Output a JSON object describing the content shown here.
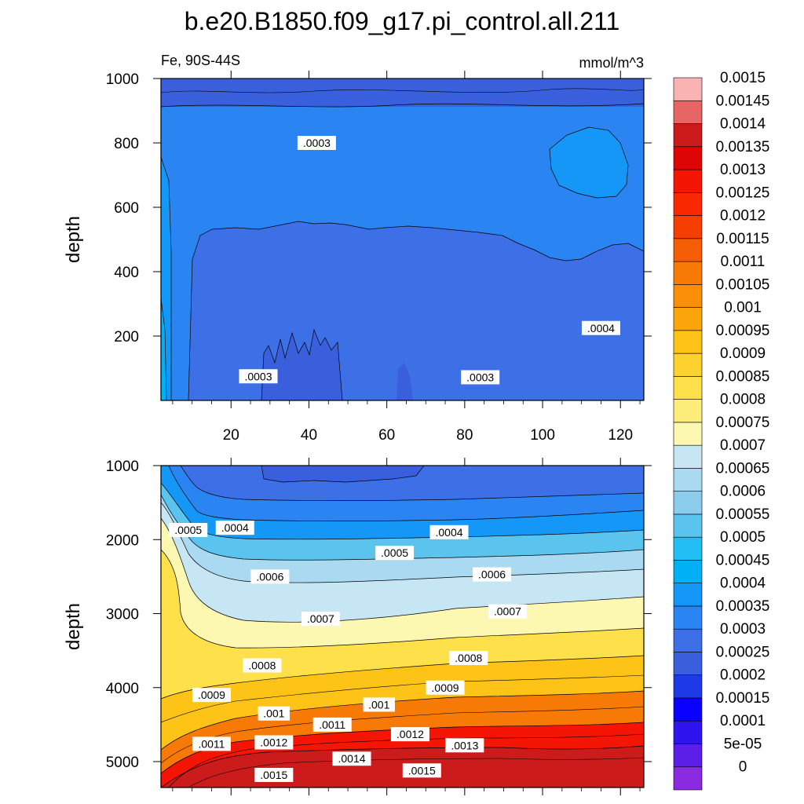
{
  "figure": {
    "title": "b.e20.B1850.f09_g17.pi_control.all.211",
    "left_label": "Fe, 90S-44S",
    "right_label": "mmol/m^3"
  },
  "chart_data": [
    {
      "type": "contour",
      "panel": "upper",
      "ylabel": "depth",
      "xlim": [
        2,
        126
      ],
      "ylim": [
        1000,
        0
      ],
      "xticks": [
        20,
        40,
        60,
        80,
        100,
        120
      ],
      "yticks": [
        200,
        400,
        600,
        800,
        1000
      ],
      "contour_labels": [
        {
          "text": ".0003",
          "x": 27,
          "y": 75
        },
        {
          "text": ".0003",
          "x": 84,
          "y": 72
        },
        {
          "text": ".0004",
          "x": 115,
          "y": 225
        },
        {
          "text": ".0003",
          "x": 42,
          "y": 800
        }
      ]
    },
    {
      "type": "contour",
      "panel": "lower",
      "ylabel": "depth",
      "xlim": [
        2,
        126
      ],
      "ylim": [
        1000,
        5350
      ],
      "yticks": [
        1000,
        2000,
        3000,
        4000,
        5000
      ],
      "contour_labels": [
        {
          "text": ".0005",
          "x": 9,
          "y": 1870
        },
        {
          "text": ".0004",
          "x": 21,
          "y": 1840
        },
        {
          "text": ".0004",
          "x": 76,
          "y": 1900
        },
        {
          "text": ".0005",
          "x": 62,
          "y": 2180
        },
        {
          "text": ".0006",
          "x": 30,
          "y": 2500
        },
        {
          "text": ".0006",
          "x": 87,
          "y": 2470
        },
        {
          "text": ".0007",
          "x": 43,
          "y": 3070
        },
        {
          "text": ".0007",
          "x": 91,
          "y": 2970
        },
        {
          "text": ".0008",
          "x": 28,
          "y": 3700
        },
        {
          "text": ".0008",
          "x": 81,
          "y": 3600
        },
        {
          "text": ".0009",
          "x": 15,
          "y": 4100
        },
        {
          "text": ".0009",
          "x": 75,
          "y": 4000
        },
        {
          "text": ".001",
          "x": 31,
          "y": 4350
        },
        {
          "text": ".001",
          "x": 58,
          "y": 4230
        },
        {
          "text": ".0011",
          "x": 46,
          "y": 4500
        },
        {
          "text": ".0011",
          "x": 15,
          "y": 4760
        },
        {
          "text": ".0012",
          "x": 31,
          "y": 4740
        },
        {
          "text": ".0012",
          "x": 66,
          "y": 4630
        },
        {
          "text": ".0013",
          "x": 80,
          "y": 4780
        },
        {
          "text": ".0014",
          "x": 51,
          "y": 4960
        },
        {
          "text": ".0015",
          "x": 31,
          "y": 5180
        },
        {
          "text": ".0015",
          "x": 69,
          "y": 5120
        }
      ]
    }
  ],
  "colorbar": {
    "labels": [
      "0",
      "5e-05",
      "0.0001",
      "0.00015",
      "0.0002",
      "0.00025",
      "0.0003",
      "0.00035",
      "0.0004",
      "0.00045",
      "0.0005",
      "0.00055",
      "0.0006",
      "0.00065",
      "0.0007",
      "0.00075",
      "0.0008",
      "0.00085",
      "0.0009",
      "0.00095",
      "0.001",
      "0.00105",
      "0.0011",
      "0.00115",
      "0.0012",
      "0.00125",
      "0.0013",
      "0.00135",
      "0.0014",
      "0.00145",
      "0.0015"
    ],
    "colors": [
      "#8a2be2",
      "#5c1fe8",
      "#2f14ef",
      "#0a00ff",
      "#1e3ae6",
      "#3a5fdc",
      "#3d6fe6",
      "#2a84f2",
      "#1497f7",
      "#00b0f5",
      "#22bff4",
      "#5ac4ef",
      "#8ccdee",
      "#a9daf1",
      "#c6e6f3",
      "#fcf8b2",
      "#fdee7c",
      "#fde04a",
      "#fdd22e",
      "#fdc317",
      "#fba70c",
      "#f98f07",
      "#f77a06",
      "#f55e04",
      "#f63e00",
      "#fa2800",
      "#f51505",
      "#dd0505",
      "#cc1b1b",
      "#e86565",
      "#fab3b3"
    ]
  }
}
